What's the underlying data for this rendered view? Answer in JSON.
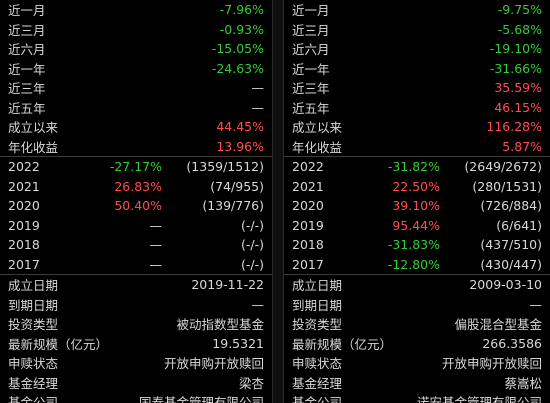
{
  "left": {
    "returns": [
      {
        "label": "近一月",
        "value": "-7.96%",
        "tone": "neg"
      },
      {
        "label": "近三月",
        "value": "-0.93%",
        "tone": "neg"
      },
      {
        "label": "近六月",
        "value": "-15.05%",
        "tone": "neg"
      },
      {
        "label": "近一年",
        "value": "-24.63%",
        "tone": "neg"
      },
      {
        "label": "近三年",
        "value": "—",
        "tone": "neu"
      },
      {
        "label": "近五年",
        "value": "—",
        "tone": "neu"
      },
      {
        "label": "成立以来",
        "value": "44.45%",
        "tone": "pos"
      },
      {
        "label": "年化收益",
        "value": "13.96%",
        "tone": "pos"
      }
    ],
    "years": [
      {
        "year": "2022",
        "pct": "-27.17%",
        "tone": "neg",
        "rank": "(1359/1512)"
      },
      {
        "year": "2021",
        "pct": "26.83%",
        "tone": "pos",
        "rank": "(74/955)"
      },
      {
        "year": "2020",
        "pct": "50.40%",
        "tone": "pos",
        "rank": "(139/776)"
      },
      {
        "year": "2019",
        "pct": "—",
        "tone": "neu",
        "rank": "(-/-)"
      },
      {
        "year": "2018",
        "pct": "—",
        "tone": "neu",
        "rank": "(-/-)"
      },
      {
        "year": "2017",
        "pct": "—",
        "tone": "neu",
        "rank": "(-/-)"
      }
    ],
    "info": [
      {
        "label": "成立日期",
        "value": "2019-11-22"
      },
      {
        "label": "到期日期",
        "value": "—"
      },
      {
        "label": "投资类型",
        "value": "被动指数型基金"
      },
      {
        "label": "最新规模（亿元）",
        "value": "19.5321"
      },
      {
        "label": "申赎状态",
        "value": "开放申购开放赎回"
      },
      {
        "label": "基金经理",
        "value": "梁杏"
      },
      {
        "label": "基金公司",
        "value": "国泰基金管理有限公司"
      }
    ]
  },
  "right": {
    "returns": [
      {
        "label": "近一月",
        "value": "-9.75%",
        "tone": "neg"
      },
      {
        "label": "近三月",
        "value": "-5.68%",
        "tone": "neg"
      },
      {
        "label": "近六月",
        "value": "-19.10%",
        "tone": "neg"
      },
      {
        "label": "近一年",
        "value": "-31.66%",
        "tone": "neg"
      },
      {
        "label": "近三年",
        "value": "35.59%",
        "tone": "pos"
      },
      {
        "label": "近五年",
        "value": "46.15%",
        "tone": "pos"
      },
      {
        "label": "成立以来",
        "value": "116.28%",
        "tone": "pos"
      },
      {
        "label": "年化收益",
        "value": "5.87%",
        "tone": "pos"
      }
    ],
    "years": [
      {
        "year": "2022",
        "pct": "-31.82%",
        "tone": "neg",
        "rank": "(2649/2672)"
      },
      {
        "year": "2021",
        "pct": "22.50%",
        "tone": "pos",
        "rank": "(280/1531)"
      },
      {
        "year": "2020",
        "pct": "39.10%",
        "tone": "pos",
        "rank": "(726/884)"
      },
      {
        "year": "2019",
        "pct": "95.44%",
        "tone": "pos",
        "rank": "(6/641)"
      },
      {
        "year": "2018",
        "pct": "-31.83%",
        "tone": "neg",
        "rank": "(437/510)"
      },
      {
        "year": "2017",
        "pct": "-12.80%",
        "tone": "neg",
        "rank": "(430/447)"
      }
    ],
    "info": [
      {
        "label": "成立日期",
        "value": "2009-03-10"
      },
      {
        "label": "到期日期",
        "value": "—"
      },
      {
        "label": "投资类型",
        "value": "偏股混合型基金"
      },
      {
        "label": "最新规模（亿元）",
        "value": "266.3586"
      },
      {
        "label": "申赎状态",
        "value": "开放申购开放赎回"
      },
      {
        "label": "基金经理",
        "value": "蔡嵩松"
      },
      {
        "label": "基金公司",
        "value": "诺安基金管理有限公司"
      }
    ]
  }
}
